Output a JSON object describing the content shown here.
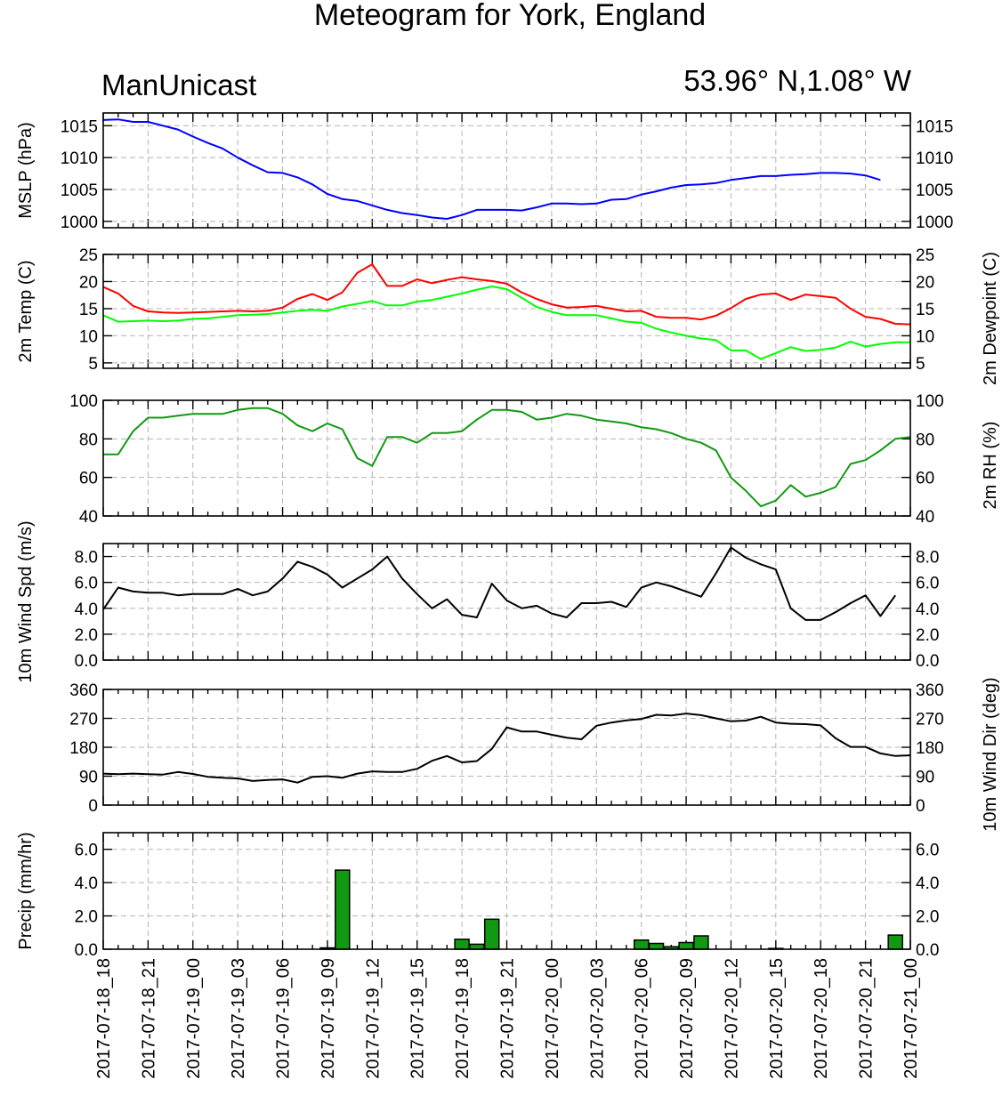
{
  "title": "Meteogram for York, England",
  "source_label": "ManUnicast",
  "location_label": "53.96° N,1.08° W",
  "time_labels": [
    "2017-07-18_18",
    "2017-07-18_21",
    "2017-07-19_00",
    "2017-07-19_03",
    "2017-07-19_06",
    "2017-07-19_09",
    "2017-07-19_12",
    "2017-07-19_15",
    "2017-07-19_18",
    "2017-07-19_21",
    "2017-07-20_00",
    "2017-07-20_03",
    "2017-07-20_06",
    "2017-07-20_09",
    "2017-07-20_12",
    "2017-07-20_15",
    "2017-07-20_18",
    "2017-07-20_21",
    "2017-07-21_00"
  ],
  "chart_data": [
    {
      "type": "line",
      "panel": "mslp",
      "ylabel": "MSLP (hPa)",
      "ylabel_right": "",
      "ylim": [
        999,
        1017
      ],
      "yticks": [
        1000,
        1005,
        1010,
        1015
      ],
      "ytick_labels": [
        "1000",
        "1005",
        "1010",
        "1015"
      ],
      "grid": true,
      "series": [
        {
          "color": "#0000ff",
          "values": [
            1015.9,
            1016.0,
            1015.6,
            1015.6,
            1015.0,
            1014.4,
            1013.3,
            1012.3,
            1011.4,
            1010.0,
            1008.8,
            1007.7,
            1007.6,
            1006.9,
            1005.8,
            1004.3,
            1003.5,
            1003.2,
            1002.5,
            1001.8,
            1001.3,
            1001.0,
            1000.6,
            1000.4,
            1001.0,
            1001.8,
            1001.8,
            1001.8,
            1001.7,
            1002.2,
            1002.8,
            1002.8,
            1002.7,
            1002.8,
            1003.4,
            1003.5,
            1004.2,
            1004.7,
            1005.3,
            1005.7,
            1005.8,
            1006.0,
            1006.5,
            1006.8,
            1007.1,
            1007.1,
            1007.3,
            1007.4,
            1007.6,
            1007.6,
            1007.5,
            1007.2,
            1006.5
          ]
        }
      ]
    },
    {
      "type": "line",
      "panel": "temp",
      "ylabel": "2m Temp (C)",
      "ylabel_right": "2m Dewpoint (C)",
      "ylim": [
        4,
        25
      ],
      "yticks": [
        5,
        10,
        15,
        20,
        25
      ],
      "ytick_labels": [
        "5",
        "10",
        "15",
        "20",
        "25"
      ],
      "grid": true,
      "series": [
        {
          "color": "#ff0000",
          "values": [
            19.0,
            17.8,
            15.5,
            14.5,
            14.3,
            14.2,
            14.3,
            14.4,
            14.5,
            14.6,
            14.5,
            14.6,
            15.2,
            16.8,
            17.7,
            16.6,
            18.0,
            21.6,
            23.2,
            19.2,
            19.2,
            20.4,
            19.7,
            20.3,
            20.8,
            20.4,
            20.1,
            19.6,
            18.0,
            16.8,
            15.8,
            15.2,
            15.3,
            15.5,
            15.0,
            14.5,
            14.6,
            13.5,
            13.3,
            13.3,
            13.0,
            13.7,
            15.1,
            16.8,
            17.6,
            17.8,
            16.6,
            17.6,
            17.3,
            17.0,
            15.0,
            13.5,
            13.1,
            12.2,
            12.1
          ]
        },
        {
          "color": "#00ff00",
          "values": [
            13.8,
            12.6,
            12.7,
            12.8,
            12.7,
            12.8,
            13.1,
            13.2,
            13.5,
            13.8,
            13.9,
            14.0,
            14.3,
            14.6,
            14.8,
            14.6,
            15.4,
            15.9,
            16.4,
            15.6,
            15.6,
            16.3,
            16.6,
            17.2,
            17.8,
            18.5,
            19.1,
            18.6,
            17.0,
            15.3,
            14.4,
            13.8,
            13.8,
            13.8,
            13.2,
            12.6,
            12.4,
            11.3,
            10.6,
            10.0,
            9.5,
            9.2,
            7.3,
            7.3,
            5.7,
            6.8,
            7.9,
            7.2,
            7.4,
            7.8,
            8.9,
            8.0,
            8.5,
            8.8,
            8.8
          ]
        }
      ]
    },
    {
      "type": "line",
      "panel": "rh",
      "ylabel": "",
      "ylabel_right": "2m RH (%)",
      "ylim": [
        40,
        100
      ],
      "yticks": [
        40,
        60,
        80,
        100
      ],
      "ytick_labels": [
        "40",
        "60",
        "80",
        "100"
      ],
      "grid": true,
      "series": [
        {
          "color": "#119911",
          "values": [
            72,
            72,
            84,
            91,
            91,
            92,
            93,
            93,
            93,
            95,
            96,
            96,
            93,
            87,
            84,
            88,
            85,
            70,
            66,
            81,
            81,
            78,
            83,
            83,
            84,
            90,
            95,
            95,
            94,
            90,
            91,
            93,
            92,
            90,
            89,
            88,
            86,
            85,
            83,
            80,
            78,
            74,
            60,
            53,
            45,
            48,
            56,
            50,
            52,
            55,
            67,
            69,
            74,
            80,
            81
          ]
        }
      ]
    },
    {
      "type": "line",
      "panel": "wind_speed",
      "ylabel": "10m Wind Spd (m/s)",
      "ylabel_right": "",
      "ylim": [
        0,
        9.0
      ],
      "yticks": [
        0,
        2,
        4,
        6,
        8
      ],
      "ytick_labels": [
        "0.0",
        "2.0",
        "4.0",
        "6.0",
        "8.0"
      ],
      "grid": true,
      "series": [
        {
          "color": "#000000",
          "values": [
            3.9,
            5.6,
            5.3,
            5.2,
            5.2,
            5.0,
            5.1,
            5.1,
            5.1,
            5.5,
            5.0,
            5.3,
            6.3,
            7.6,
            7.2,
            6.6,
            5.6,
            6.3,
            7.0,
            8.0,
            6.3,
            5.1,
            4.0,
            4.7,
            3.5,
            3.3,
            5.9,
            4.6,
            4.0,
            4.2,
            3.6,
            3.3,
            4.4,
            4.4,
            4.5,
            4.1,
            5.6,
            6.0,
            5.7,
            5.3,
            4.9,
            6.7,
            8.7,
            7.9,
            7.4,
            7.0,
            4.0,
            3.1,
            3.1,
            3.7,
            4.4,
            5.0,
            3.4,
            5.0
          ]
        }
      ]
    },
    {
      "type": "line",
      "panel": "wind_dir",
      "ylabel": "",
      "ylabel_right": "10m Wind Dir (deg)",
      "ylim": [
        0,
        360
      ],
      "yticks": [
        0,
        90,
        180,
        270,
        360
      ],
      "ytick_labels": [
        "0",
        "90",
        "180",
        "270",
        "360"
      ],
      "grid": true,
      "series": [
        {
          "color": "#000000",
          "values": [
            98,
            96,
            98,
            96,
            95,
            103,
            97,
            88,
            85,
            83,
            75,
            78,
            80,
            70,
            88,
            90,
            85,
            98,
            105,
            103,
            103,
            113,
            138,
            153,
            133,
            137,
            175,
            242,
            229,
            229,
            219,
            210,
            205,
            247,
            257,
            264,
            268,
            281,
            279,
            285,
            280,
            270,
            261,
            263,
            275,
            257,
            253,
            252,
            248,
            208,
            181,
            181,
            161,
            153,
            155
          ]
        }
      ]
    },
    {
      "type": "bar",
      "panel": "precip",
      "ylabel": "Precip (mm/hr)",
      "ylabel_right": "",
      "ylim": [
        0,
        7.0
      ],
      "yticks": [
        0,
        2,
        4,
        6
      ],
      "ytick_labels": [
        "0.0",
        "2.0",
        "4.0",
        "6.0"
      ],
      "grid": true,
      "bar_color": "#119911",
      "bars": [
        {
          "x": 15,
          "value": 0.08
        },
        {
          "x": 16,
          "value": 4.75
        },
        {
          "x": 24,
          "value": 0.6
        },
        {
          "x": 25,
          "value": 0.3
        },
        {
          "x": 26,
          "value": 1.8
        },
        {
          "x": 36,
          "value": 0.55
        },
        {
          "x": 37,
          "value": 0.35
        },
        {
          "x": 38,
          "value": 0.15
        },
        {
          "x": 39,
          "value": 0.4
        },
        {
          "x": 40,
          "value": 0.8
        },
        {
          "x": 45,
          "value": 0.05
        },
        {
          "x": 53,
          "value": 0.85
        }
      ]
    }
  ]
}
